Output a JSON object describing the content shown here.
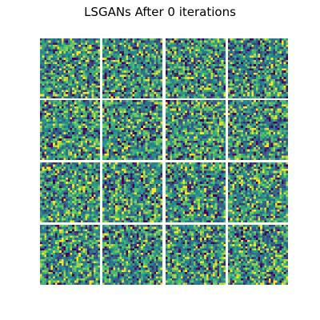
{
  "figure": {
    "title": "LSGANs After 0 iterations"
  },
  "samples": {
    "rows": 4,
    "columns": 4,
    "pixels_per_side": 28,
    "colormap": "viridis",
    "colormap_stops": [
      "#440154",
      "#3b528b",
      "#21918c",
      "#5ec962",
      "#fde725"
    ],
    "tile_seeds": [
      [
        11,
        27,
        43,
        59
      ],
      [
        71,
        83,
        97,
        109
      ],
      [
        127,
        139,
        151,
        163
      ],
      [
        179,
        191,
        211,
        223
      ]
    ]
  }
}
